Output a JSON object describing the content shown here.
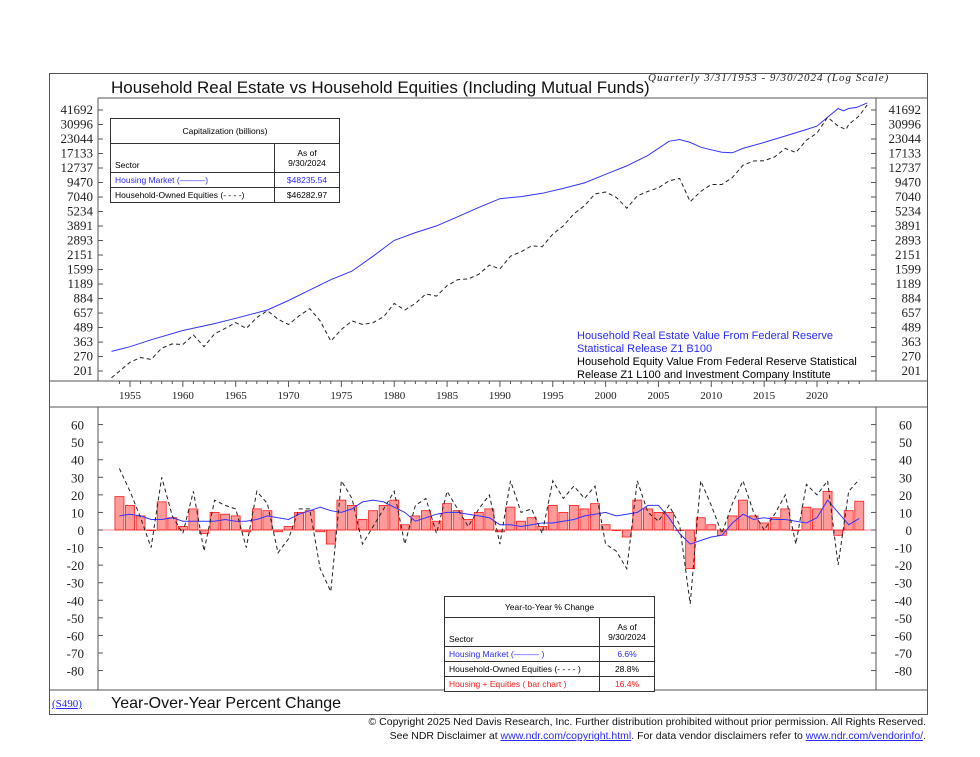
{
  "header": {
    "title": "Household Real Estate vs Household Equities (Including Mutual Funds)",
    "subtitle": "Quarterly 3/31/1953 - 9/30/2024 (Log Scale)"
  },
  "cap_table": {
    "title": "Capitalization (billions)",
    "col_sector": "Sector",
    "col_asof": "As of 9/30/2024",
    "rows": [
      {
        "label": "Housing Market (———)",
        "value": "$48235.54",
        "color": "#2b2bff"
      },
      {
        "label": "Household-Owned Equities (- - - -)",
        "value": "$46282.97",
        "color": "#111111"
      }
    ]
  },
  "source_notes": {
    "line1": "Household Real Estate Value From Federal Reserve",
    "line2": "Statistical Release Z1 B100",
    "line3": "Household Equity Value From Federal Reserve Statistical",
    "line4": "Release Z1 L100 and Investment Company Institute"
  },
  "yoy_table": {
    "title": "Year-to-Year % Change",
    "col_sector": "Sector",
    "col_asof": "As of 9/30/2024",
    "rows": [
      {
        "label": "Housing Market (——— )",
        "value": "6.6%",
        "color": "#2b2bff"
      },
      {
        "label": "Household-Owned Equities (- - - - )",
        "value": "28.8%",
        "color": "#111111"
      },
      {
        "label": "Housing +  Equities ( bar chart )",
        "value": "16.4%",
        "color": "#ff1a1a"
      }
    ]
  },
  "footer": {
    "code": "(S490)",
    "bottom_title": "Year-Over-Year Percent Change",
    "copyright": "© Copyright 2025 Ned Davis Research, Inc.  Further distribution prohibited without prior permission.  All Rights Reserved.",
    "disclaimer_prefix": "See NDR Disclaimer at ",
    "disclaimer_link1": "www.ndr.com/copyright.html",
    "disclaimer_mid": ". For data vendor disclaimers refer to ",
    "disclaimer_link2": "www.ndr.com/vendorinfo/",
    "disclaimer_suffix": "."
  },
  "chart_data": [
    {
      "type": "line",
      "scale": "log",
      "ylim": [
        170,
        52000
      ],
      "xlim": [
        1953,
        2025
      ],
      "x_ticks": [
        "1955",
        "1960",
        "1965",
        "1970",
        "1975",
        "1980",
        "1985",
        "1990",
        "1995",
        "2000",
        "2005",
        "2010",
        "2015",
        "2020"
      ],
      "y_ticks": [
        "41692",
        "30996",
        "23044",
        "17133",
        "12737",
        "9470",
        "7040",
        "5234",
        "3891",
        "2893",
        "2151",
        "1599",
        "1189",
        "884",
        "657",
        "489",
        "363",
        "270",
        "201"
      ],
      "colors": {
        "housing": "#3333ff",
        "equities": "#222222"
      },
      "series": [
        {
          "key": "housing",
          "style": "solid",
          "points": [
            [
              1953.25,
              300
            ],
            [
              1955,
              330
            ],
            [
              1957,
              380
            ],
            [
              1960,
              460
            ],
            [
              1963,
              530
            ],
            [
              1965,
              590
            ],
            [
              1968,
              700
            ],
            [
              1970,
              850
            ],
            [
              1972,
              1050
            ],
            [
              1974,
              1300
            ],
            [
              1976,
              1550
            ],
            [
              1978,
              2100
            ],
            [
              1980,
              2900
            ],
            [
              1982,
              3400
            ],
            [
              1984,
              3900
            ],
            [
              1986,
              4700
            ],
            [
              1988,
              5700
            ],
            [
              1990,
              6800
            ],
            [
              1992,
              7100
            ],
            [
              1994,
              7600
            ],
            [
              1996,
              8400
            ],
            [
              1998,
              9400
            ],
            [
              2000,
              11200
            ],
            [
              2002,
              13300
            ],
            [
              2004,
              16500
            ],
            [
              2006,
              22000
            ],
            [
              2007,
              22800
            ],
            [
              2008,
              21500
            ],
            [
              2009,
              19500
            ],
            [
              2010,
              18500
            ],
            [
              2011,
              17600
            ],
            [
              2012,
              17400
            ],
            [
              2013,
              19000
            ],
            [
              2015,
              21500
            ],
            [
              2017,
              24500
            ],
            [
              2019,
              28000
            ],
            [
              2020,
              30000
            ],
            [
              2021,
              36000
            ],
            [
              2022,
              43000
            ],
            [
              2022.5,
              41000
            ],
            [
              2023,
              43000
            ],
            [
              2023.75,
              44000
            ],
            [
              2024.75,
              48236
            ]
          ]
        },
        {
          "key": "equities",
          "style": "dashed",
          "points": [
            [
              1953.25,
              175
            ],
            [
              1954,
              200
            ],
            [
              1955,
              240
            ],
            [
              1956,
              265
            ],
            [
              1957,
              255
            ],
            [
              1958,
              320
            ],
            [
              1959,
              350
            ],
            [
              1960,
              345
            ],
            [
              1961,
              420
            ],
            [
              1962,
              330
            ],
            [
              1963,
              430
            ],
            [
              1964,
              480
            ],
            [
              1965,
              540
            ],
            [
              1966,
              480
            ],
            [
              1967,
              600
            ],
            [
              1968,
              690
            ],
            [
              1969,
              580
            ],
            [
              1970,
              520
            ],
            [
              1971,
              620
            ],
            [
              1972,
              720
            ],
            [
              1973,
              560
            ],
            [
              1974,
              370
            ],
            [
              1975,
              470
            ],
            [
              1976,
              560
            ],
            [
              1977,
              520
            ],
            [
              1978,
              540
            ],
            [
              1979,
              610
            ],
            [
              1980,
              800
            ],
            [
              1981,
              700
            ],
            [
              1982,
              800
            ],
            [
              1983,
              970
            ],
            [
              1984,
              930
            ],
            [
              1985,
              1150
            ],
            [
              1986,
              1300
            ],
            [
              1987,
              1320
            ],
            [
              1988,
              1450
            ],
            [
              1989,
              1750
            ],
            [
              1990,
              1620
            ],
            [
              1991,
              2100
            ],
            [
              1992,
              2300
            ],
            [
              1993,
              2600
            ],
            [
              1994,
              2550
            ],
            [
              1995,
              3300
            ],
            [
              1996,
              3900
            ],
            [
              1997,
              5000
            ],
            [
              1998,
              5900
            ],
            [
              1999,
              7500
            ],
            [
              2000,
              7800
            ],
            [
              2001,
              7000
            ],
            [
              2002,
              5600
            ],
            [
              2003,
              7200
            ],
            [
              2004,
              7900
            ],
            [
              2005,
              8500
            ],
            [
              2006,
              9800
            ],
            [
              2007,
              10300
            ],
            [
              2008,
              6400
            ],
            [
              2009,
              7900
            ],
            [
              2010,
              9100
            ],
            [
              2011,
              9100
            ],
            [
              2012,
              10500
            ],
            [
              2013,
              13500
            ],
            [
              2014,
              14700
            ],
            [
              2015,
              14800
            ],
            [
              2016,
              16000
            ],
            [
              2017,
              19000
            ],
            [
              2018,
              17500
            ],
            [
              2019,
              22500
            ],
            [
              2020,
              26000
            ],
            [
              2021,
              36000
            ],
            [
              2022,
              30000
            ],
            [
              2022.75,
              28000
            ],
            [
              2023,
              31000
            ],
            [
              2024,
              37000
            ],
            [
              2024.75,
              46283
            ]
          ]
        }
      ]
    },
    {
      "type": "bar+line",
      "ylim": [
        -85,
        65
      ],
      "y_ticks": [
        60,
        50,
        40,
        30,
        20,
        10,
        0,
        -10,
        -20,
        -30,
        -40,
        -50,
        -60,
        -70,
        -80
      ],
      "colors": {
        "bars_fill": "#ff9a9a",
        "bars_stroke": "#ff1a1a",
        "housing": "#3333ff",
        "equities": "#222222"
      },
      "years": [
        1954,
        1955,
        1956,
        1957,
        1958,
        1959,
        1960,
        1961,
        1962,
        1963,
        1964,
        1965,
        1966,
        1967,
        1968,
        1969,
        1970,
        1971,
        1972,
        1973,
        1974,
        1975,
        1976,
        1977,
        1978,
        1979,
        1980,
        1981,
        1982,
        1983,
        1984,
        1985,
        1986,
        1987,
        1988,
        1989,
        1990,
        1991,
        1992,
        1993,
        1994,
        1995,
        1996,
        1997,
        1998,
        1999,
        2000,
        2001,
        2002,
        2003,
        2004,
        2005,
        2006,
        2007,
        2008,
        2009,
        2010,
        2011,
        2012,
        2013,
        2014,
        2015,
        2016,
        2017,
        2018,
        2019,
        2020,
        2021,
        2022,
        2023,
        2024
      ],
      "housing_yoy": [
        8,
        9,
        8,
        6,
        6,
        7,
        5,
        5,
        5,
        5,
        6,
        5,
        5,
        6,
        8,
        7,
        6,
        9,
        11,
        13,
        11,
        10,
        12,
        16,
        17,
        16,
        13,
        10,
        5,
        7,
        9,
        10,
        10,
        9,
        8,
        7,
        3,
        3,
        2,
        3,
        4,
        4,
        5,
        6,
        8,
        9,
        10,
        8,
        9,
        10,
        14,
        14,
        7,
        -2,
        -8,
        -6,
        -4,
        -3,
        4,
        9,
        6,
        7,
        6,
        6,
        5,
        4,
        7,
        17,
        10,
        3,
        6.6
      ],
      "equities_yoy": [
        35,
        22,
        7,
        -10,
        30,
        8,
        -2,
        22,
        -12,
        17,
        14,
        12,
        -10,
        22,
        15,
        -13,
        -5,
        12,
        12,
        -22,
        -35,
        28,
        18,
        -8,
        2,
        12,
        22,
        -8,
        14,
        18,
        -2,
        22,
        12,
        2,
        12,
        20,
        -8,
        28,
        10,
        12,
        -2,
        28,
        18,
        25,
        18,
        25,
        -8,
        -12,
        -22,
        28,
        10,
        5,
        14,
        3,
        -42,
        28,
        14,
        -2,
        15,
        28,
        10,
        0,
        9,
        20,
        -8,
        26,
        20,
        28,
        -20,
        22,
        28.8
      ],
      "combined_yoy": [
        19,
        14,
        8,
        0,
        16,
        7,
        2,
        12,
        -2,
        10,
        9,
        8,
        -1,
        12,
        11,
        -1,
        2,
        10,
        11,
        -1,
        -8,
        17,
        14,
        6,
        11,
        14,
        17,
        3,
        8,
        11,
        5,
        15,
        11,
        6,
        10,
        12,
        -1,
        13,
        5,
        7,
        2,
        14,
        10,
        14,
        12,
        15,
        3,
        0,
        -4,
        17,
        12,
        10,
        10,
        0,
        -22,
        7,
        3,
        -3,
        8,
        17,
        8,
        4,
        7,
        12,
        0,
        13,
        12,
        22,
        -3,
        11,
        16.4
      ]
    }
  ]
}
